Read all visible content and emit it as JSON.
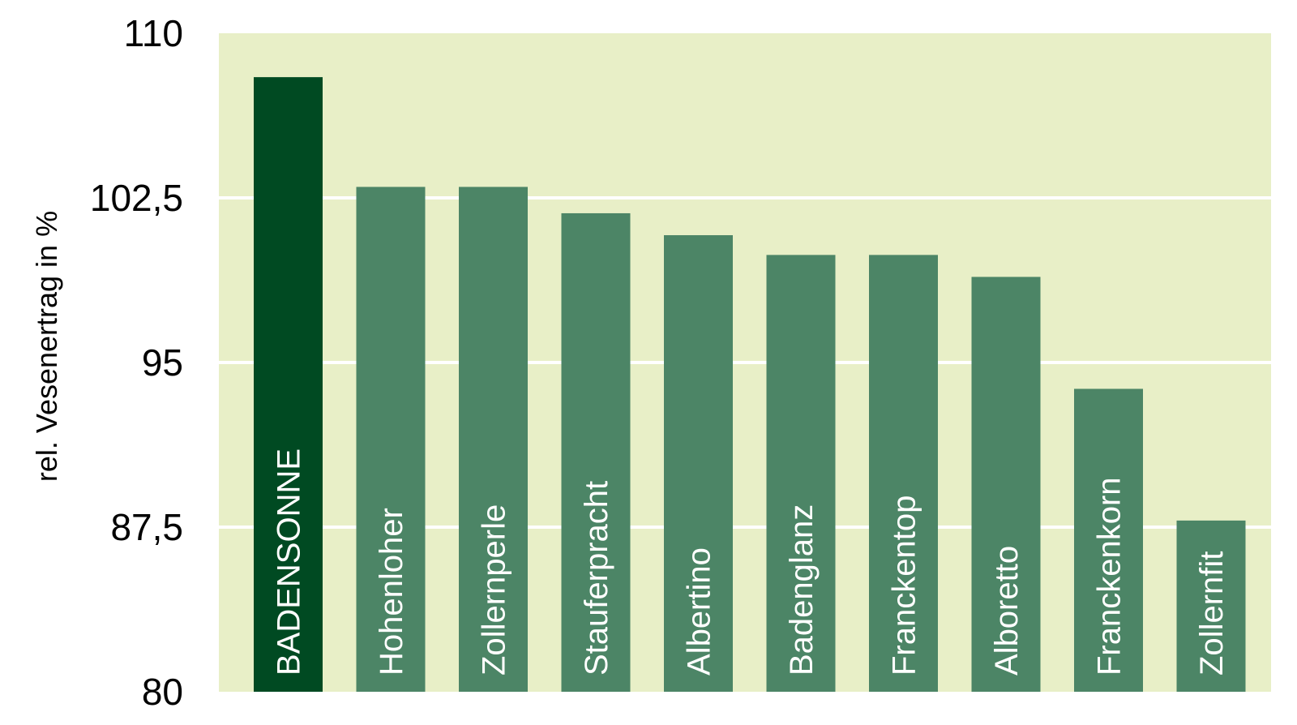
{
  "chart_data": {
    "type": "bar",
    "title": "",
    "xlabel": "",
    "ylabel": "rel. Vesenertrag in %",
    "ylim": [
      80,
      110
    ],
    "yticks": [
      {
        "value": 80,
        "label": "80"
      },
      {
        "value": 87.5,
        "label": "87,5"
      },
      {
        "value": 95,
        "label": "95"
      },
      {
        "value": 102.5,
        "label": "102,5"
      },
      {
        "value": 110,
        "label": "110"
      }
    ],
    "grid": true,
    "categories": [
      "BADENSONNE",
      "Hohenloher",
      "Zollernperle",
      "Stauferpracht",
      "Albertino",
      "Badenglanz",
      "Franckentop",
      "Alboretto",
      "Franckenkorn",
      "Zollernfit"
    ],
    "values": [
      108,
      103,
      103,
      101.8,
      100.8,
      99.9,
      99.9,
      98.9,
      93.8,
      87.8
    ],
    "colors": {
      "plot_background": "#e8efc7",
      "gridline": "#ffffff",
      "highlight_bar": "#004a22",
      "bar": "#4c8566",
      "bar_text": "#ffffff"
    },
    "highlight_index": 0
  }
}
